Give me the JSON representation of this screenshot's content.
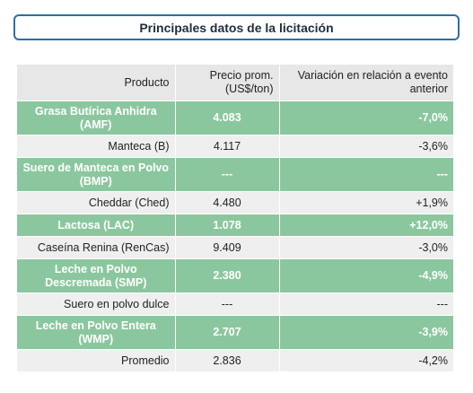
{
  "title": "Principales datos de la licitación",
  "table": {
    "headers": [
      "Producto",
      "Precio prom. (US$/ton)",
      "Variación en relación a evento anterior"
    ],
    "rows": [
      {
        "product": "Grasa Butírica Anhidra (AMF)",
        "price": "4.083",
        "variation": "-7,0%",
        "highlight": true
      },
      {
        "product": "Manteca (B)",
        "price": "4.117",
        "variation": "-3,6%",
        "highlight": false
      },
      {
        "product": "Suero de Manteca en Polvo (BMP)",
        "price": "---",
        "variation": "---",
        "highlight": true
      },
      {
        "product": "Cheddar (Ched)",
        "price": "4.480",
        "variation": "+1,9%",
        "highlight": false
      },
      {
        "product": "Lactosa (LAC)",
        "price": "1.078",
        "variation": "+12,0%",
        "highlight": true
      },
      {
        "product": "Caseína Renina (RenCas)",
        "price": "9.409",
        "variation": "-3,0%",
        "highlight": false
      },
      {
        "product": "Leche en Polvo Descremada (SMP)",
        "price": "2.380",
        "variation": "-4,9%",
        "highlight": true
      },
      {
        "product": "Suero en polvo dulce",
        "price": "---",
        "variation": "---",
        "highlight": false
      },
      {
        "product": "Leche en Polvo Entera (WMP)",
        "price": "2.707",
        "variation": "-3,9%",
        "highlight": true
      },
      {
        "product": "Promedio",
        "price": "2.836",
        "variation": "-4,2%",
        "highlight": false
      }
    ]
  },
  "colors": {
    "highlight_row": "#8bc79e",
    "plain_row": "#efefef",
    "header_bg": "#e7e7e7",
    "title_border": "#2d6fa3"
  }
}
